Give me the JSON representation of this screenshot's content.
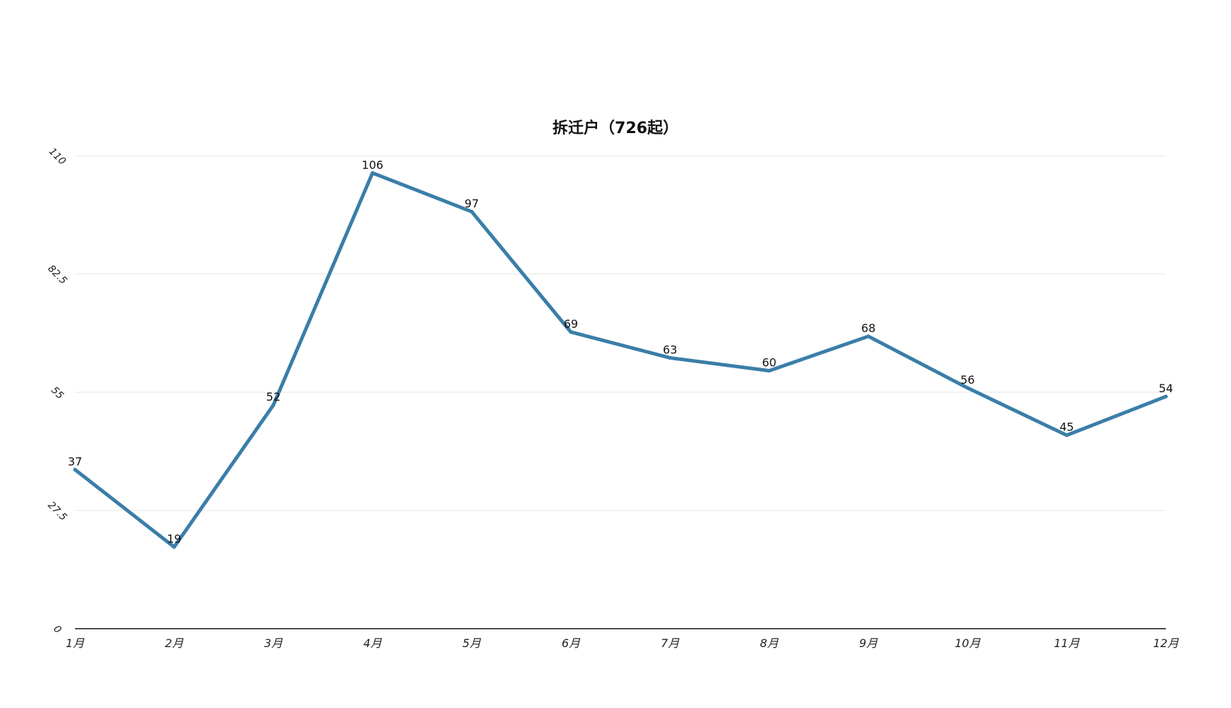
{
  "chart_data": {
    "type": "line",
    "title": "拆迁户（726起）",
    "xlabel": "",
    "ylabel": "",
    "categories": [
      "1月",
      "2月",
      "3月",
      "4月",
      "5月",
      "6月",
      "7月",
      "8月",
      "9月",
      "10月",
      "11月",
      "12月"
    ],
    "series": [
      {
        "values": [
          37,
          19,
          52,
          106,
          97,
          69,
          63,
          60,
          68,
          56,
          45,
          54
        ],
        "color": "#3a7ea8"
      }
    ],
    "ylim": [
      0,
      110
    ],
    "y_ticks": [
      0,
      27.5,
      55,
      82.5,
      110
    ],
    "y_tick_labels": [
      "0",
      "27.5",
      "55",
      "82.5",
      "110"
    ],
    "grid": true,
    "legend": "none",
    "data_labels": true
  }
}
